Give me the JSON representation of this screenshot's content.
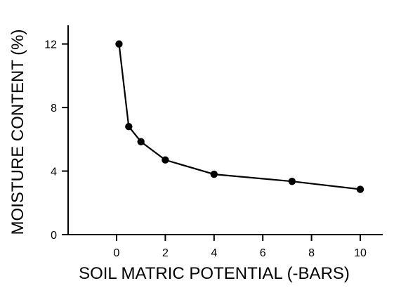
{
  "chart_data": {
    "type": "line",
    "title": "",
    "xlabel": "SOIL MATRIC POTENTIAL (-BARS)",
    "ylabel": "MOISTURE CONTENT (%)",
    "xlim": [
      -2,
      10
    ],
    "ylim": [
      0,
      13
    ],
    "x_ticks": [
      0,
      2,
      4,
      6,
      8,
      10
    ],
    "y_ticks": [
      0,
      4,
      8,
      12
    ],
    "grid": false,
    "series": [
      {
        "x": [
          0.1,
          0.5,
          1,
          2,
          4,
          7.2,
          10
        ],
        "y": [
          12.0,
          6.8,
          5.85,
          4.7,
          3.8,
          3.35,
          2.85
        ]
      }
    ],
    "colors": {
      "line": "#000000",
      "marker": "#000000",
      "axis": "#000000"
    }
  }
}
